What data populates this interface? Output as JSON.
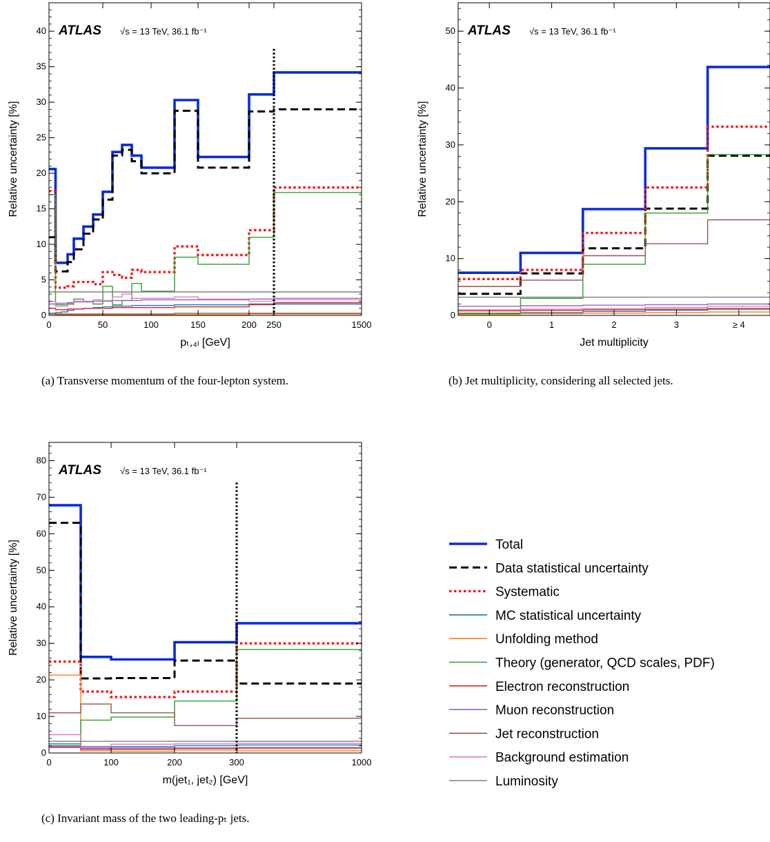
{
  "captions": {
    "a": "(a)  Transverse momentum of the four-lepton system.",
    "b": "(b)  Jet multiplicity, considering all selected jets.",
    "c": "(c)  Invariant mass of the two leading-pₜ jets."
  },
  "atlas_label": "ATLAS",
  "energy_label": "√s = 13 TeV, 36.1 fb⁻¹",
  "colors": {
    "Total": "#0a2bd9",
    "Data statistical uncertainty": "#000000",
    "Systematic": "#f01e1e",
    "MC statistical uncertainty": "#1f77b4",
    "Unfolding method": "#ff7f0e",
    "Theory (generator, QCD scales, PDF)": "#2ca02c",
    "Electron reconstruction": "#d62728",
    "Muon reconstruction": "#9467bd",
    "Jet reconstruction": "#8c564b",
    "Background estimation": "#e377c2",
    "Luminosity": "#7f7f7f"
  },
  "legend": [
    "Total",
    "Data statistical uncertainty",
    "Systematic",
    "MC statistical uncertainty",
    "Unfolding method",
    "Theory (generator, QCD scales, PDF)",
    "Electron reconstruction",
    "Muon reconstruction",
    "Jet reconstruction",
    "Background estimation",
    "Luminosity"
  ],
  "chart_data": [
    {
      "type": "line",
      "id": "a",
      "xlabel": "pₜ,₄ₗ [GeV]",
      "ylabel": "Relative uncertainty [%]",
      "ylim": [
        0,
        44
      ],
      "ytick_step": 5,
      "xticks": [
        "0",
        "50",
        "100",
        "150",
        "200",
        "250",
        "1500"
      ],
      "x_edges": [
        0,
        5,
        10,
        15,
        20,
        30,
        40,
        50,
        60,
        70,
        80,
        90,
        100,
        125,
        150,
        200,
        250,
        1500
      ],
      "series": [
        {
          "name": "Total",
          "values": [
            20.6,
            7.4,
            7.4,
            8.6,
            10.8,
            12.5,
            14.2,
            17.4,
            23.0,
            24.0,
            22.5,
            20.8,
            20.8,
            30.3,
            22.3,
            31.1,
            34.2
          ]
        },
        {
          "name": "Data statistical uncertainty",
          "values": [
            11.0,
            6.2,
            6.2,
            7.5,
            9.3,
            11.5,
            13.5,
            16.3,
            22.5,
            23.3,
            21.7,
            20.0,
            20.0,
            28.8,
            20.8,
            28.7,
            29.0
          ]
        },
        {
          "name": "Systematic",
          "values": [
            17.5,
            3.9,
            3.9,
            4.1,
            4.7,
            4.7,
            4.4,
            6.1,
            5.7,
            5.3,
            6.4,
            6.1,
            6.1,
            9.7,
            8.5,
            12.0,
            18.0
          ]
        },
        {
          "name": "MC statistical uncertainty",
          "values": [
            0.3,
            0.4,
            0.5,
            0.7,
            0.9,
            1.0,
            1.1,
            1.2,
            1.3,
            1.3,
            1.4,
            1.4,
            1.4,
            1.5,
            1.5,
            1.6,
            1.6
          ]
        },
        {
          "name": "Unfolding method",
          "values": [
            0.2,
            0.1,
            0.1,
            0.1,
            0.1,
            0.1,
            0.1,
            0.1,
            0.1,
            0.1,
            0.1,
            0.1,
            0.1,
            0.1,
            0.1,
            0.2,
            0.2
          ]
        },
        {
          "name": "Theory (generator, QCD scales, PDF)",
          "values": [
            17.0,
            1.5,
            1.5,
            1.7,
            2.3,
            1.9,
            1.6,
            4.1,
            1.5,
            2.1,
            4.5,
            3.4,
            3.4,
            8.2,
            7.2,
            11.0,
            17.3
          ]
        },
        {
          "name": "Electron reconstruction",
          "values": [
            1.0,
            0.8,
            0.8,
            0.9,
            0.9,
            1.0,
            1.0,
            1.0,
            1.1,
            1.1,
            1.1,
            1.1,
            1.1,
            1.2,
            1.2,
            1.5,
            1.8
          ]
        },
        {
          "name": "Muon reconstruction",
          "values": [
            1.6,
            1.7,
            1.7,
            1.8,
            1.9,
            1.9,
            2.0,
            2.0,
            2.1,
            2.1,
            2.1,
            2.2,
            2.2,
            2.2,
            2.2,
            2.3,
            2.4
          ]
        },
        {
          "name": "Jet reconstruction",
          "values": [
            0.2,
            0.2,
            0.2,
            0.2,
            0.2,
            0.2,
            0.2,
            0.2,
            0.2,
            0.2,
            0.2,
            0.2,
            0.2,
            0.3,
            0.3,
            0.3,
            0.3
          ]
        },
        {
          "name": "Background estimation",
          "values": [
            2.0,
            1.3,
            1.3,
            1.5,
            2.0,
            2.0,
            2.2,
            2.1,
            2.6,
            3.0,
            2.4,
            2.4,
            2.4,
            2.6,
            2.3,
            2.0,
            2.2
          ]
        },
        {
          "name": "Luminosity",
          "values": [
            3.3,
            3.3,
            3.3,
            3.3,
            3.3,
            3.3,
            3.3,
            3.3,
            3.3,
            3.3,
            3.3,
            3.3,
            3.3,
            3.3,
            3.3,
            3.3,
            3.3
          ]
        }
      ],
      "vline": {
        "x": 250,
        "ymax": 37.5
      }
    },
    {
      "type": "line",
      "id": "b",
      "xlabel": "Jet multiplicity",
      "ylabel": "Relative uncertainty [%]",
      "ylim": [
        0,
        55
      ],
      "ytick_step": 10,
      "xticks": [
        "0",
        "1",
        "2",
        "3",
        "≥ 4"
      ],
      "x_edges": [
        -0.5,
        0.5,
        1.5,
        2.5,
        3.5,
        4.5
      ],
      "series": [
        {
          "name": "Total",
          "values": [
            7.5,
            11.0,
            18.7,
            29.4,
            43.7
          ]
        },
        {
          "name": "Data statistical uncertainty",
          "values": [
            3.8,
            7.4,
            11.8,
            18.8,
            28.1
          ]
        },
        {
          "name": "Systematic",
          "values": [
            6.4,
            8.0,
            14.5,
            22.5,
            33.2
          ]
        },
        {
          "name": "MC statistical uncertainty",
          "values": [
            0.3,
            0.5,
            0.7,
            0.9,
            1.1
          ]
        },
        {
          "name": "Unfolding method",
          "values": [
            0.2,
            0.3,
            0.4,
            0.5,
            0.6
          ]
        },
        {
          "name": "Theory (generator, QCD scales, PDF)",
          "values": [
            0.4,
            3.0,
            9.0,
            18.0,
            28.3
          ]
        },
        {
          "name": "Electron reconstruction",
          "values": [
            0.8,
            0.9,
            1.0,
            1.1,
            1.2
          ]
        },
        {
          "name": "Muon reconstruction",
          "values": [
            1.6,
            1.7,
            1.8,
            1.9,
            2.0
          ]
        },
        {
          "name": "Jet reconstruction",
          "values": [
            5.1,
            6.2,
            10.5,
            12.6,
            16.8
          ]
        },
        {
          "name": "Background estimation",
          "values": [
            1.0,
            1.1,
            1.2,
            1.4,
            1.6
          ]
        },
        {
          "name": "Luminosity",
          "values": [
            3.2,
            3.2,
            3.2,
            3.2,
            3.2
          ]
        }
      ]
    },
    {
      "type": "line",
      "id": "c",
      "xlabel": "m(jet₁, jet₂) [GeV]",
      "ylabel": "Relative uncertainty [%]",
      "ylim": [
        0,
        85
      ],
      "ytick_step": 10,
      "xticks": [
        "0",
        "100",
        "200",
        "300",
        "1000"
      ],
      "x_edges": [
        0,
        50,
        100,
        200,
        300,
        1000
      ],
      "series": [
        {
          "name": "Total",
          "values": [
            67.8,
            26.3,
            25.6,
            30.3,
            35.5
          ]
        },
        {
          "name": "Data statistical uncertainty",
          "values": [
            63.0,
            20.4,
            20.5,
            25.3,
            19.0
          ]
        },
        {
          "name": "Systematic",
          "values": [
            25.0,
            16.8,
            15.3,
            16.8,
            30.0
          ]
        },
        {
          "name": "MC statistical uncertainty",
          "values": [
            2.5,
            1.6,
            1.7,
            2.0,
            2.2
          ]
        },
        {
          "name": "Unfolding method",
          "values": [
            21.3,
            0.6,
            0.5,
            0.8,
            0.6
          ]
        },
        {
          "name": "Theory (generator, QCD scales, PDF)",
          "values": [
            2.0,
            9.0,
            9.8,
            14.2,
            28.3
          ]
        },
        {
          "name": "Electron reconstruction",
          "values": [
            1.5,
            1.0,
            1.0,
            1.2,
            1.3
          ]
        },
        {
          "name": "Muon reconstruction",
          "values": [
            1.8,
            1.2,
            1.3,
            1.4,
            1.5
          ]
        },
        {
          "name": "Jet reconstruction",
          "values": [
            11.0,
            13.4,
            11.0,
            7.5,
            9.5
          ]
        },
        {
          "name": "Background estimation",
          "values": [
            5.0,
            1.8,
            2.4,
            2.5,
            2.6
          ]
        },
        {
          "name": "Luminosity",
          "values": [
            3.2,
            3.2,
            3.2,
            3.2,
            3.2
          ]
        }
      ],
      "vline": {
        "x": 300,
        "ymax": 74
      }
    }
  ]
}
